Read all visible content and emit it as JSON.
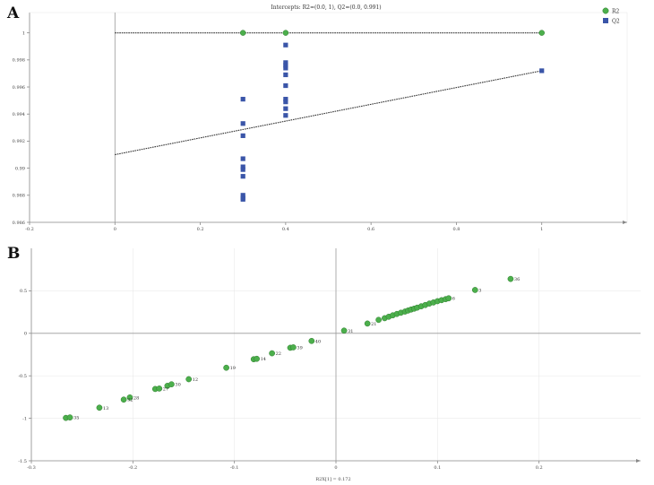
{
  "chart_data": [
    {
      "panel": "A",
      "type": "scatter",
      "title": "Intercepts: R2=(0.0, 1), Q2=(0.0, 0.991)",
      "xlim": [
        -0.2,
        1.2
      ],
      "ylim": [
        0.986,
        1.0015
      ],
      "xticks": [
        -0.2,
        0,
        0.2,
        0.4,
        0.6,
        0.8,
        1
      ],
      "xtick_labels": [
        "-0.2",
        "0",
        "0.2",
        "0.4",
        "0.6",
        "0.8",
        "1"
      ],
      "yticks": [
        0.986,
        0.988,
        0.99,
        0.992,
        0.994,
        0.996,
        0.998,
        1
      ],
      "ytick_labels": [
        "0.986",
        "0.988",
        "0.99",
        "0.992",
        "0.994",
        "0.996",
        "0.998",
        "1"
      ],
      "legend": {
        "placement": "top-right"
      },
      "series": [
        {
          "name": "R2",
          "marker": "circle",
          "color": "#4caf4c",
          "points": [
            [
              0.3,
              1.0
            ],
            [
              0.4,
              1.0
            ],
            [
              1.0,
              1.0
            ]
          ],
          "regression": [
            [
              0,
              1.0
            ],
            [
              1.0,
              1.0
            ]
          ]
        },
        {
          "name": "Q2",
          "marker": "square",
          "color": "#3a55a8",
          "points": [
            [
              0.3,
              0.9951
            ],
            [
              0.3,
              0.9933
            ],
            [
              0.3,
              0.9924
            ],
            [
              0.3,
              0.9907
            ],
            [
              0.3,
              0.9901
            ],
            [
              0.3,
              0.9899
            ],
            [
              0.3,
              0.9894
            ],
            [
              0.3,
              0.988
            ],
            [
              0.3,
              0.9878
            ],
            [
              0.3,
              0.9877
            ],
            [
              0.4,
              0.9991
            ],
            [
              0.4,
              0.9978
            ],
            [
              0.4,
              0.9976
            ],
            [
              0.4,
              0.9974
            ],
            [
              0.4,
              0.9969
            ],
            [
              0.4,
              0.9961
            ],
            [
              0.4,
              0.9951
            ],
            [
              0.4,
              0.9949
            ],
            [
              0.4,
              0.9944
            ],
            [
              0.4,
              0.9939
            ],
            [
              1.0,
              0.9972
            ]
          ],
          "regression": [
            [
              0,
              0.991
            ],
            [
              1.0,
              0.9972
            ]
          ]
        }
      ]
    },
    {
      "panel": "B",
      "type": "scatter",
      "xlabel": "R2X[1] = 0.172",
      "xlim": [
        -0.3,
        0.3
      ],
      "ylim": [
        -1.5,
        1.0
      ],
      "xticks": [
        -0.3,
        -0.2,
        -0.1,
        0,
        0.1,
        0.2
      ],
      "xtick_labels": [
        "-0.3",
        "-0.2",
        "-0.1",
        "0",
        "0.1",
        "0.2"
      ],
      "yticks": [
        -1.5,
        -1,
        -0.5,
        0,
        0.5
      ],
      "ytick_labels": [
        "-1.5",
        "-1",
        "-0.5",
        "0",
        "0.5"
      ],
      "series": [
        {
          "color": "#4caf4c",
          "points": [
            {
              "x": -0.266,
              "y": -0.995,
              "label": ""
            },
            {
              "x": -0.262,
              "y": -0.99,
              "label": "35"
            },
            {
              "x": -0.233,
              "y": -0.875,
              "label": "13"
            },
            {
              "x": -0.209,
              "y": -0.78,
              "label": "32"
            },
            {
              "x": -0.203,
              "y": -0.755,
              "label": "28"
            },
            {
              "x": -0.178,
              "y": -0.655,
              "label": ""
            },
            {
              "x": -0.174,
              "y": -0.65,
              "label": "27"
            },
            {
              "x": -0.166,
              "y": -0.618,
              "label": ""
            },
            {
              "x": -0.162,
              "y": -0.6,
              "label": "30"
            },
            {
              "x": -0.145,
              "y": -0.54,
              "label": "12"
            },
            {
              "x": -0.108,
              "y": -0.405,
              "label": "19"
            },
            {
              "x": -0.081,
              "y": -0.305,
              "label": ""
            },
            {
              "x": -0.078,
              "y": -0.3,
              "label": "14"
            },
            {
              "x": -0.063,
              "y": -0.235,
              "label": "22"
            },
            {
              "x": -0.045,
              "y": -0.17,
              "label": ""
            },
            {
              "x": -0.042,
              "y": -0.165,
              "label": "39"
            },
            {
              "x": -0.024,
              "y": -0.09,
              "label": "40"
            },
            {
              "x": 0.008,
              "y": 0.032,
              "label": "31"
            },
            {
              "x": 0.031,
              "y": 0.115,
              "label": "21"
            },
            {
              "x": 0.042,
              "y": 0.158,
              "label": ""
            },
            {
              "x": 0.048,
              "y": 0.178,
              "label": ""
            },
            {
              "x": 0.052,
              "y": 0.195,
              "label": ""
            },
            {
              "x": 0.056,
              "y": 0.212,
              "label": ""
            },
            {
              "x": 0.06,
              "y": 0.228,
              "label": ""
            },
            {
              "x": 0.064,
              "y": 0.242,
              "label": ""
            },
            {
              "x": 0.068,
              "y": 0.256,
              "label": ""
            },
            {
              "x": 0.071,
              "y": 0.268,
              "label": ""
            },
            {
              "x": 0.074,
              "y": 0.28,
              "label": ""
            },
            {
              "x": 0.077,
              "y": 0.29,
              "label": ""
            },
            {
              "x": 0.08,
              "y": 0.302,
              "label": ""
            },
            {
              "x": 0.084,
              "y": 0.318,
              "label": ""
            },
            {
              "x": 0.088,
              "y": 0.333,
              "label": ""
            },
            {
              "x": 0.092,
              "y": 0.35,
              "label": ""
            },
            {
              "x": 0.096,
              "y": 0.363,
              "label": ""
            },
            {
              "x": 0.1,
              "y": 0.378,
              "label": ""
            },
            {
              "x": 0.104,
              "y": 0.39,
              "label": ""
            },
            {
              "x": 0.108,
              "y": 0.402,
              "label": ""
            },
            {
              "x": 0.111,
              "y": 0.412,
              "label": "6"
            },
            {
              "x": 0.137,
              "y": 0.51,
              "label": "3"
            },
            {
              "x": 0.172,
              "y": 0.64,
              "label": "36"
            }
          ]
        }
      ]
    }
  ],
  "panels": [
    {
      "letter": "A"
    },
    {
      "letter": "B"
    }
  ]
}
